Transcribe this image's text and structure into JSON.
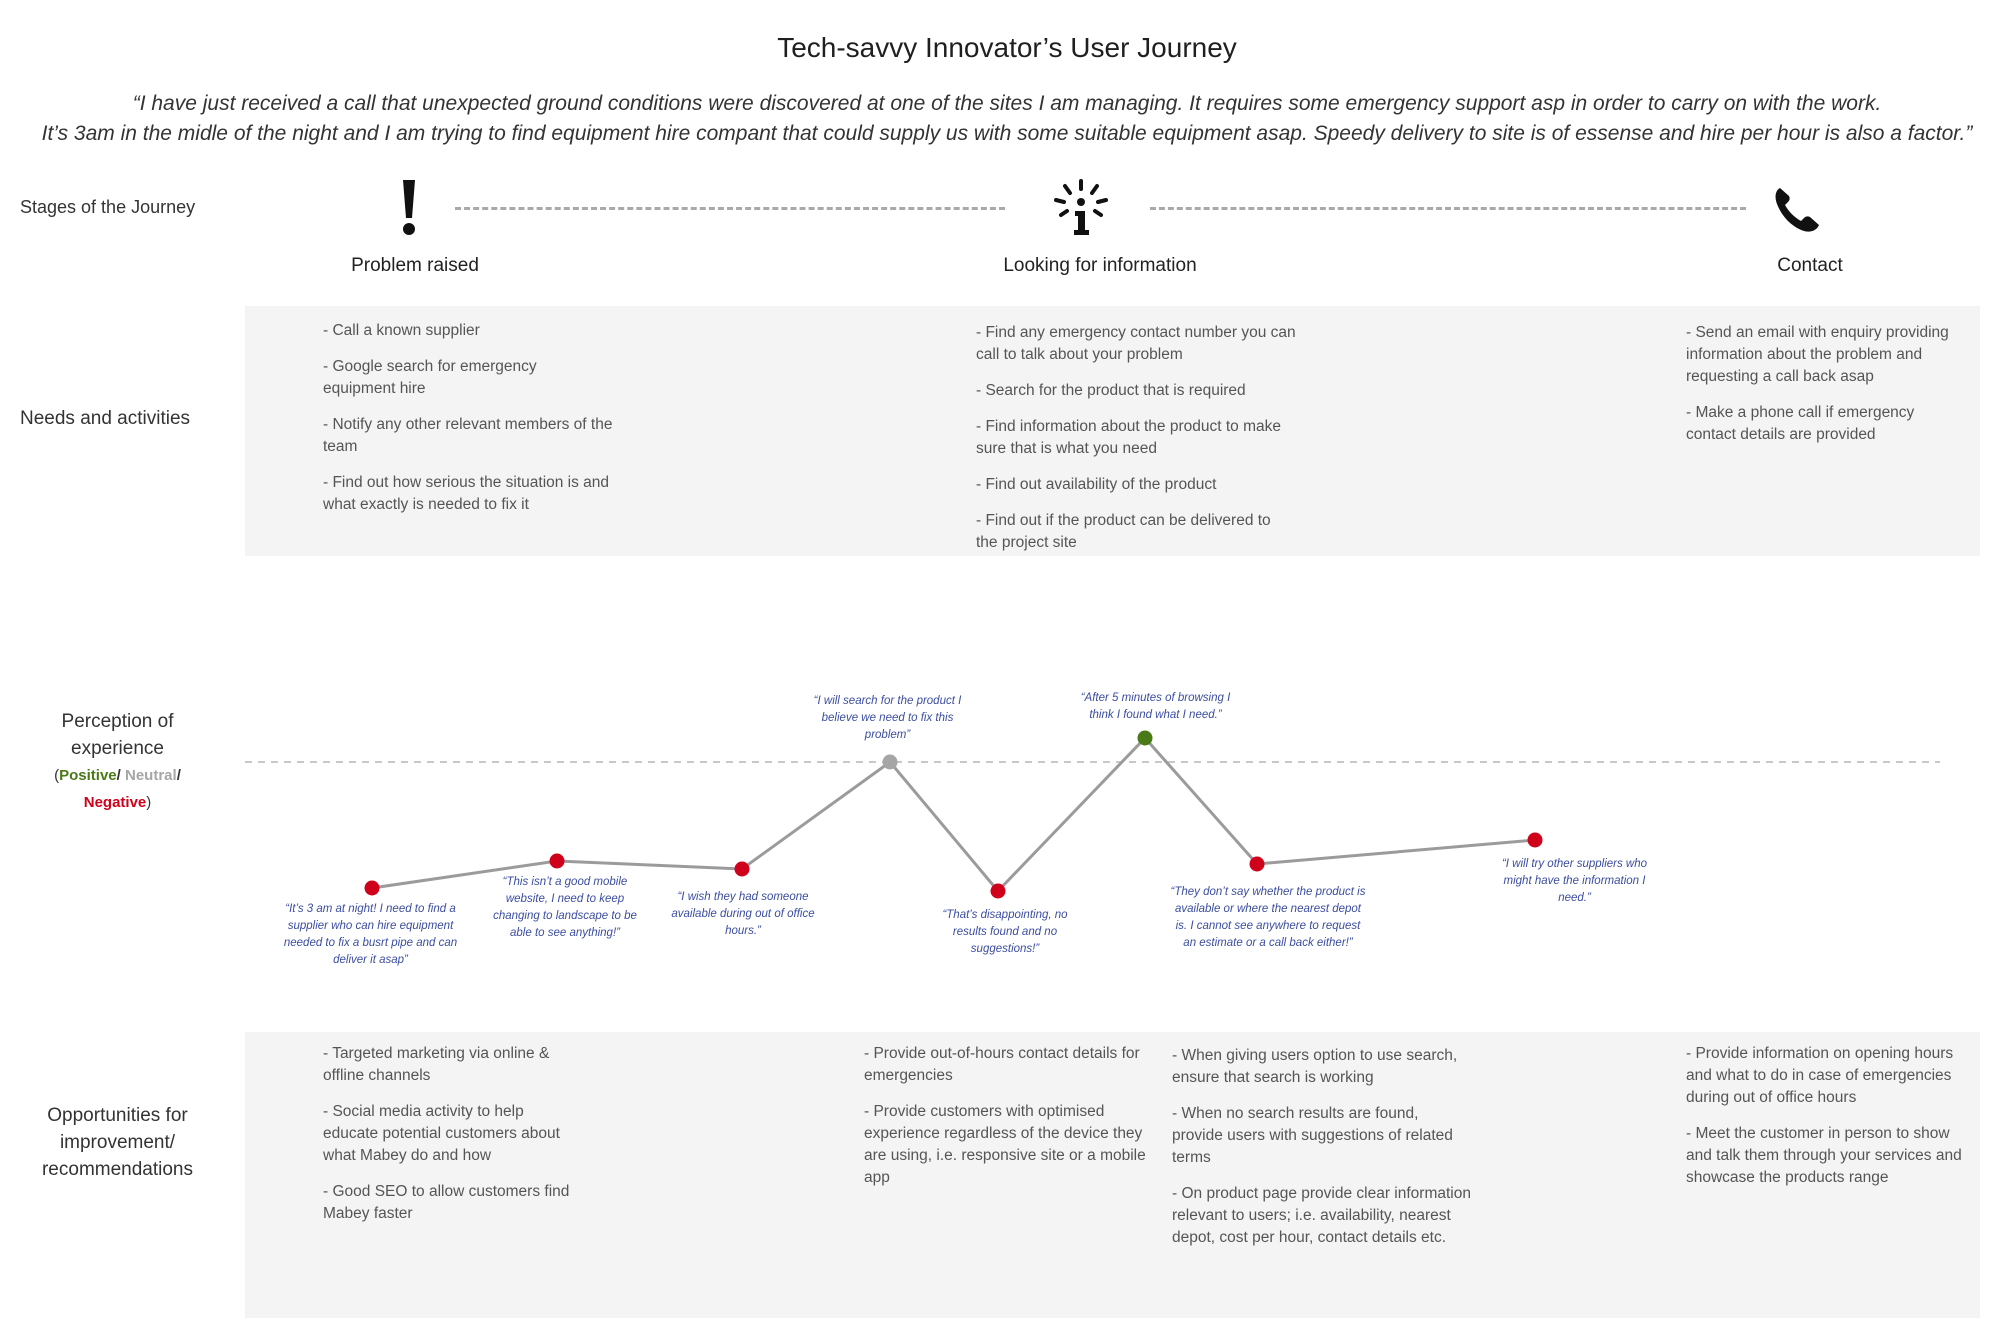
{
  "title": "Tech-savvy Innovator’s User Journey",
  "quote": {
    "line1": "“I have just received a call that unexpected ground conditions were discovered at one of the sites I am managing. It requires some emergency support asp in order to carry on with the work.",
    "line2": "It’s 3am in the midle of the night and I am trying to find equipment hire compant that could supply us with some suitable equipment asap. Speedy delivery to site is of essense and hire per hour is also a factor.”"
  },
  "row_labels": {
    "stages": "Stages of the Journey",
    "needs": "Needs and activities",
    "perception_l1": "Perception of",
    "perception_l2": "experience",
    "positive": "Positive",
    "slash": "/",
    "neutral": "Neutral",
    "negative": "Negative",
    "paren_open": "(",
    "paren_close": ")",
    "opp_l1": "Opportunities for",
    "opp_l2": "improvement/",
    "opp_l3": "recommendations"
  },
  "stages": [
    {
      "name": "Problem raised",
      "icon": "exclamation-icon"
    },
    {
      "name": "Looking for information",
      "icon": "info-burst-icon"
    },
    {
      "name": "Contact",
      "icon": "phone-icon"
    }
  ],
  "needs": {
    "problem": [
      "- Call a known supplier",
      "- Google search for emergency equipment hire",
      "- Notify any other relevant members of the team",
      "- Find out how serious the situation is and what exactly is needed to fix it"
    ],
    "info": [
      "- Find any emergency contact number you can call to talk about your problem",
      "- Search for the product that is required",
      "- Find information about the product to make sure that is what you need",
      "- Find out availability of the product",
      "- Find out if the product can be delivered to the project site"
    ],
    "contact": [
      "- Send an email with enquiry providing information about the problem and requesting a call back asap",
      "- Make a phone call if emergency contact details are provided"
    ]
  },
  "chart_data": {
    "type": "line",
    "title": "",
    "levels": [
      "Negative",
      "Neutral",
      "Positive"
    ],
    "points": [
      {
        "sentiment": "negative",
        "quote": "“It’s 3 am at night! I need to find a supplier who can hire equipment needed to fix a busrt pipe and can deliver it asap”"
      },
      {
        "sentiment": "negative",
        "quote": "“This isn’t a good mobile website, I need to keep changing to landscape to be able to see anything!”"
      },
      {
        "sentiment": "negative",
        "quote": "“I wish they had someone available during out of office hours.”"
      },
      {
        "sentiment": "neutral",
        "quote": "“I will search for the product I believe we need to fix this problem”"
      },
      {
        "sentiment": "negative",
        "quote": "“That’s disappointing, no results found and no suggestions!”"
      },
      {
        "sentiment": "positive",
        "quote": "“After 5 minutes of browsing I think I found what I need.”"
      },
      {
        "sentiment": "negative",
        "quote": "“They don’t say whether the product is available or where the nearest depot is. I cannot see anywhere to request an estimate or a call back either!”"
      },
      {
        "sentiment": "negative",
        "quote": "“I will try other suppliers who might have the information I need.”"
      }
    ],
    "colors": {
      "positive": "#4a7a17",
      "neutral": "#a6a6a6",
      "negative": "#d0021b",
      "line": "#9b9b9b"
    }
  },
  "opportunities": {
    "col1": [
      "- Targeted marketing via online & offline channels",
      "- Social media activity to help educate potential customers about what Mabey do and how",
      "- Good SEO to allow customers find Mabey faster"
    ],
    "col2": [
      "- Provide out-of-hours contact details for emergencies",
      "- Provide customers with optimised experience regardless of the device they are using, i.e. responsive site or a mobile app"
    ],
    "col3": [
      "- When giving users option to use search, ensure that search is working",
      "- When no search results are found, provide users with suggestions of related terms",
      "- On product page provide clear information relevant to users; i.e. availability, nearest depot, cost per hour, contact details etc."
    ],
    "col4": [
      "- Provide information on opening hours and what to do in case of emergencies during out of office hours",
      " - Meet the customer in person to show and talk them through your services and showcase the products range"
    ]
  }
}
